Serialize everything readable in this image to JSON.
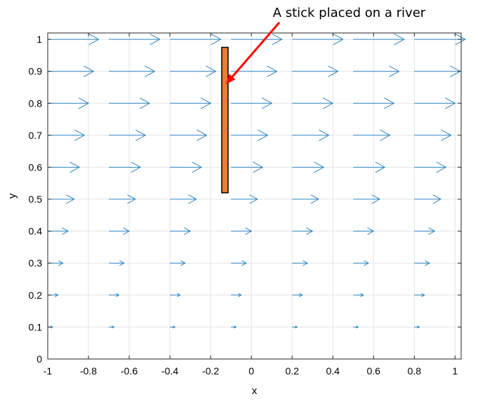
{
  "chart_data": {
    "type": "quiver",
    "title": "",
    "xlabel": "x",
    "ylabel": "y",
    "xlim": [
      -1,
      1.03
    ],
    "ylim": [
      0,
      1.02
    ],
    "grid": true,
    "xticks": [
      -1,
      -0.8,
      -0.6,
      -0.4,
      -0.2,
      0,
      0.2,
      0.4,
      0.6,
      0.8,
      1
    ],
    "xtick_labels": [
      "-1",
      "-0.8",
      "-0.6",
      "-0.4",
      "-0.2",
      "0",
      "0.2",
      "0.4",
      "0.6",
      "0.8",
      "1"
    ],
    "yticks": [
      0,
      0.1,
      0.2,
      0.3,
      0.4,
      0.5,
      0.6,
      0.7,
      0.8,
      0.9,
      1
    ],
    "ytick_labels": [
      "0",
      "0.1",
      "0.2",
      "0.3",
      "0.4",
      "0.5",
      "0.6",
      "0.7",
      "0.8",
      "0.9",
      "1"
    ],
    "arrow_origins_x": [
      -1,
      -0.7,
      -0.4,
      -0.1,
      0.2,
      0.5,
      0.8
    ],
    "arrow_origins_y": [
      0.1,
      0.2,
      0.3,
      0.4,
      0.5,
      0.6,
      0.7,
      0.8,
      0.9,
      1.0
    ],
    "arrow_u": [
      0.025,
      0.05,
      0.075,
      0.1,
      0.13,
      0.155,
      0.18,
      0.2,
      0.225,
      0.25
    ],
    "arrow_color": "#2e86c1",
    "stick": {
      "x": -0.13,
      "y_bottom": 0.52,
      "y_top": 0.975,
      "color": "#ed7d31"
    },
    "annotation": {
      "text": "A stick placed on a river",
      "color": "#ff0000",
      "text_x": 0.48,
      "text_y": 1.07,
      "point_x": -0.125,
      "point_y": 0.86
    }
  }
}
